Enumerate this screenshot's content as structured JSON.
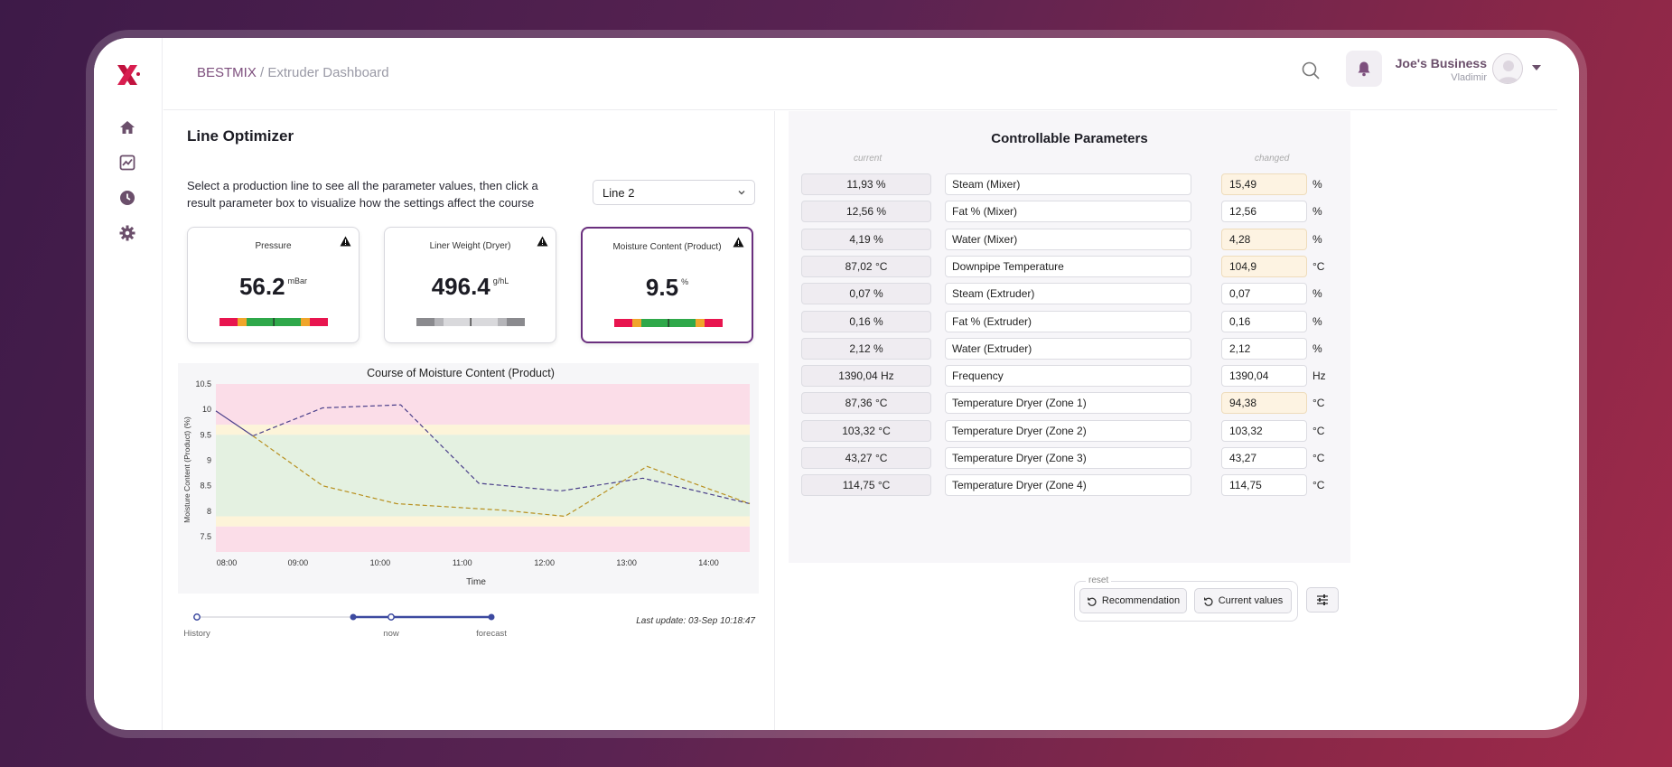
{
  "header": {
    "brand": "BESTMIX",
    "separator": " / ",
    "page": "Extruder Dashboard",
    "user_name": "Joe's Business",
    "user_sub": "Vladimir"
  },
  "sidebar": {
    "items": [
      "home-icon",
      "chart-icon",
      "clock-icon",
      "gear-icon"
    ]
  },
  "optimizer": {
    "title": "Line Optimizer",
    "description": "Select a production line to see all the parameter values, then click a result parameter box to visualize how the settings affect the course",
    "line_select": "Line 2",
    "cards": [
      {
        "label": "Pressure",
        "value": "56.2",
        "unit": "mBar",
        "level": 0.5
      },
      {
        "label": "Liner Weight (Dryer)",
        "value": "496.4",
        "unit": "g/hL",
        "level": 0.35
      },
      {
        "label": "Moisture Content (Product)",
        "value": "9.5",
        "unit": "%",
        "level": 0.78
      }
    ]
  },
  "chart_data": {
    "type": "line",
    "title": "Course of Moisture Content (Product)",
    "xlabel": "Time",
    "ylabel": "Moisture Content (Product) (%)",
    "xlim": [
      8.0,
      14.5
    ],
    "ylim": [
      7.2,
      10.5
    ],
    "x_ticks": [
      "08:00",
      "09:00",
      "10:00",
      "11:00",
      "12:00",
      "13:00",
      "14:00"
    ],
    "y_ticks": [
      "7.5",
      "8",
      "8.5",
      "9",
      "9.5",
      "10",
      "10.5"
    ],
    "bands": [
      {
        "from": 9.7,
        "to": 10.5,
        "color": "#fbdde8"
      },
      {
        "from": 9.5,
        "to": 9.7,
        "color": "#fdf4d9"
      },
      {
        "from": 7.9,
        "to": 9.5,
        "color": "#e4f1e1"
      },
      {
        "from": 7.7,
        "to": 7.9,
        "color": "#fdf4d9"
      },
      {
        "from": 7.2,
        "to": 7.7,
        "color": "#fbdde8"
      }
    ],
    "series": [
      {
        "x": [
          8.0,
          8.45
        ],
        "y": [
          9.97,
          9.48
        ],
        "color": "#4a3f8a",
        "style": "solid"
      },
      {
        "x": [
          8.45,
          9.3,
          10.25,
          11.2,
          12.2,
          13.2,
          14.5
        ],
        "y": [
          9.48,
          10.03,
          10.09,
          8.55,
          8.4,
          8.65,
          8.15
        ],
        "color": "#4a3f8a",
        "style": "dashed"
      },
      {
        "x": [
          8.45,
          9.3,
          10.2,
          11.5,
          12.25,
          13.25,
          14.5
        ],
        "y": [
          9.48,
          8.5,
          8.15,
          8.02,
          7.9,
          8.88,
          8.15
        ],
        "color": "#b89020",
        "style": "dashed"
      }
    ]
  },
  "timeline": {
    "labels": [
      "History",
      "now",
      "forecast"
    ],
    "last_update": "Last update: 03-Sep 10:18:47"
  },
  "params": {
    "title": "Controllable Parameters",
    "col_current": "current",
    "col_changed": "changed",
    "rows": [
      {
        "current": "11,93 %",
        "name": "Steam (Mixer)",
        "changed": "15,49",
        "unit": "%",
        "modified": true
      },
      {
        "current": "12,56 %",
        "name": "Fat % (Mixer)",
        "changed": "12,56",
        "unit": "%",
        "modified": false
      },
      {
        "current": "4,19 %",
        "name": "Water (Mixer)",
        "changed": "4,28",
        "unit": "%",
        "modified": true
      },
      {
        "current": "87,02 °C",
        "name": "Downpipe Temperature",
        "changed": "104,9",
        "unit": "°C",
        "modified": true
      },
      {
        "current": "0,07 %",
        "name": "Steam (Extruder)",
        "changed": "0,07",
        "unit": "%",
        "modified": false
      },
      {
        "current": "0,16 %",
        "name": "Fat % (Extruder)",
        "changed": "0,16",
        "unit": "%",
        "modified": false
      },
      {
        "current": "2,12 %",
        "name": "Water (Extruder)",
        "changed": "2,12",
        "unit": "%",
        "modified": false
      },
      {
        "current": "1390,04 Hz",
        "name": "Frequency",
        "changed": "1390,04",
        "unit": "Hz",
        "modified": false
      },
      {
        "current": "87,36 °C",
        "name": "Temperature Dryer (Zone 1)",
        "changed": "94,38",
        "unit": "°C",
        "modified": true
      },
      {
        "current": "103,32 °C",
        "name": "Temperature Dryer (Zone 2)",
        "changed": "103,32",
        "unit": "°C",
        "modified": false
      },
      {
        "current": "43,27 °C",
        "name": "Temperature Dryer (Zone 3)",
        "changed": "43,27",
        "unit": "°C",
        "modified": false
      },
      {
        "current": "114,75 °C",
        "name": "Temperature Dryer (Zone 4)",
        "changed": "114,75",
        "unit": "°C",
        "modified": false
      }
    ]
  },
  "actions": {
    "reset_label": "reset",
    "recommendation": "Recommendation",
    "current_values": "Current values"
  }
}
